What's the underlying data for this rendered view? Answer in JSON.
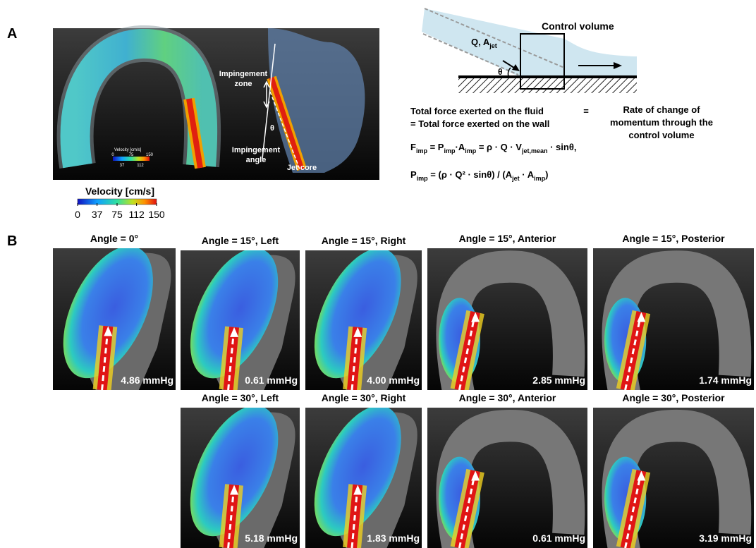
{
  "panel_a": {
    "label": "A",
    "annotations": {
      "impingement_zone": [
        "Impingement",
        "zone"
      ],
      "impingement_angle": [
        "Impingement",
        "angle"
      ],
      "jet_core": "Jet core",
      "theta": "θ"
    },
    "inset_legend": {
      "title": "Velocity [cm/s]",
      "ticks_top": [
        0,
        75,
        150
      ],
      "ticks_bottom": [
        37,
        112
      ]
    },
    "colorbar": {
      "title": "Velocity [cm/s]",
      "ticks": [
        0,
        37,
        75,
        112,
        150
      ]
    },
    "diagram": {
      "title": "Control volume",
      "flow_label": [
        "Q, A",
        "jet"
      ],
      "angle": "θ"
    },
    "equations": {
      "left": [
        "Total force exerted on the fluid",
        "= Total force exerted on the wall"
      ],
      "equals": "=",
      "right": [
        "Rate of change of",
        "momentum through the",
        "control volume"
      ],
      "force": [
        "F",
        "imp",
        " = P",
        "imp",
        "·A",
        "imp",
        " = ρ · Q · V",
        "jet,mean",
        " · sinθ,"
      ],
      "pressure": [
        "P",
        "imp",
        " = (ρ · Q² · sinθ) / (A",
        "jet",
        " · A",
        "imp",
        ")"
      ]
    }
  },
  "panel_b": {
    "label": "B",
    "panels": [
      {
        "title": "Angle = 0°",
        "pressure": "4.86 mmHg"
      },
      {
        "title": "Angle = 15°, Left",
        "pressure": "0.61 mmHg"
      },
      {
        "title": "Angle = 15°, Right",
        "pressure": "4.00 mmHg"
      },
      {
        "title": "Angle = 15°, Anterior",
        "pressure": "2.85 mmHg"
      },
      {
        "title": "Angle = 15°, Posterior",
        "pressure": "1.74 mmHg"
      },
      {
        "title": "Angle = 30°, Left",
        "pressure": "5.18 mmHg"
      },
      {
        "title": "Angle = 30°, Right",
        "pressure": "1.83 mmHg"
      },
      {
        "title": "Angle = 30°, Anterior",
        "pressure": "0.61 mmHg"
      },
      {
        "title": "Angle = 30°, Posterior",
        "pressure": "3.19 mmHg"
      }
    ]
  }
}
